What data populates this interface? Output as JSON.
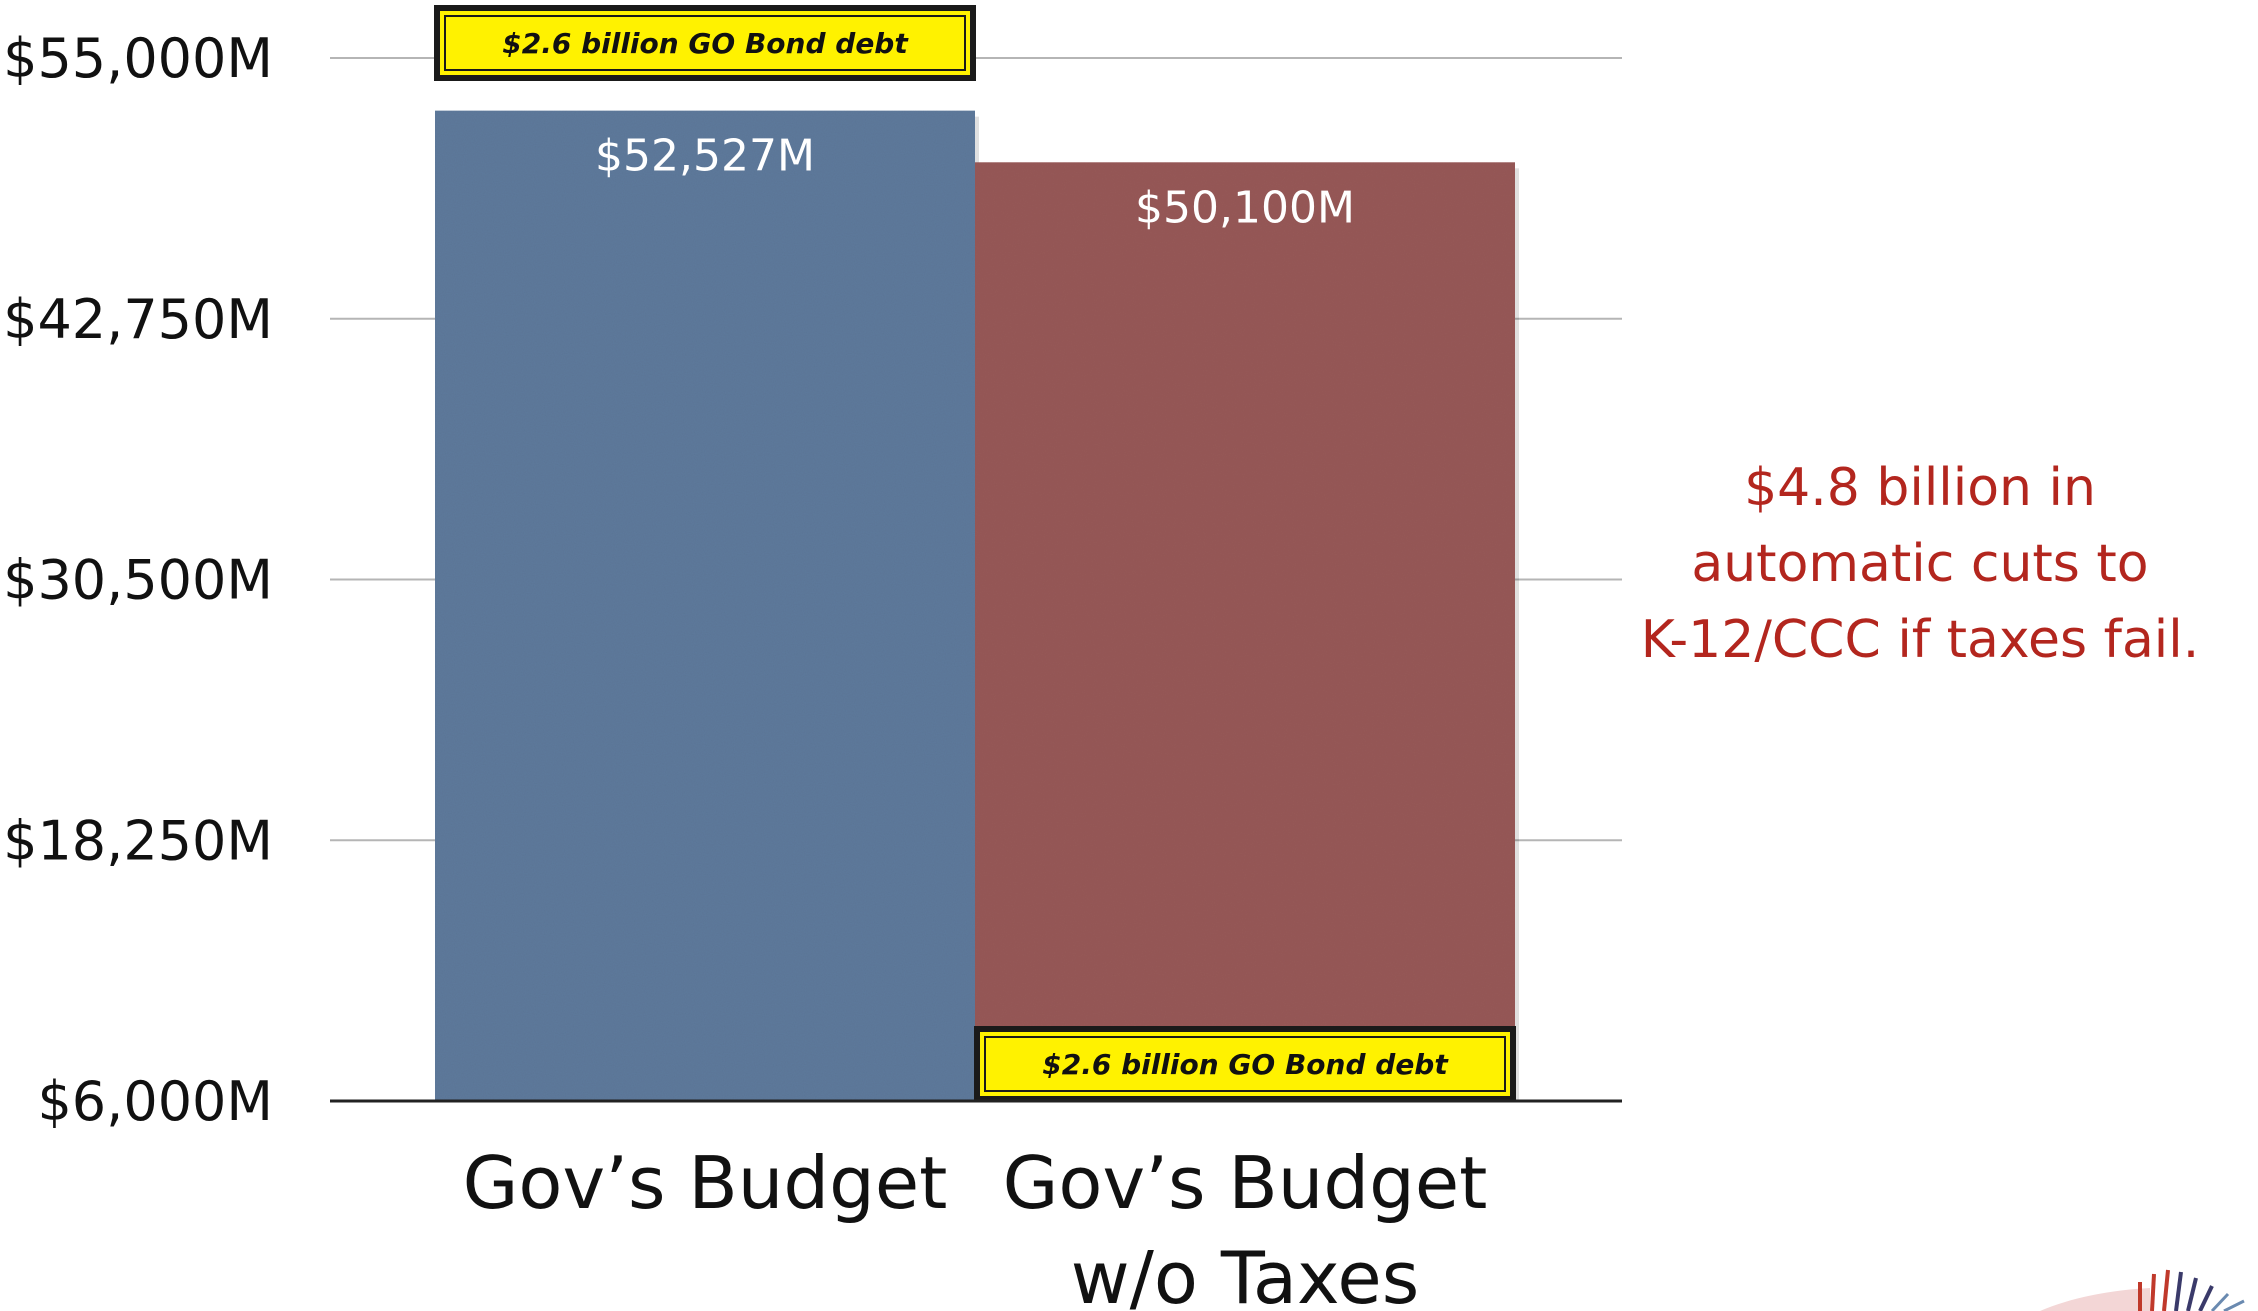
{
  "chart_data": {
    "type": "bar",
    "categories": [
      "Gov’s Budget",
      "Gov’s Budget\nw/o Taxes"
    ],
    "values": [
      52527,
      50100
    ],
    "value_labels": [
      "$52,527M",
      "$50,100M"
    ],
    "colors": [
      "#5e7a9c",
      "#985a58"
    ],
    "ylim": [
      6000,
      55000
    ],
    "yticks": [
      6000,
      18250,
      30500,
      42750,
      55000
    ],
    "ytick_labels": [
      "$6,000M",
      "$18,250M",
      "$30,500M",
      "$42,750M",
      "$55,000M"
    ],
    "grid": true,
    "annotations": [
      {
        "text": "$2.6 billion GO Bond debt",
        "bar": 0,
        "placement": "above-bar",
        "color": "#fff200"
      },
      {
        "text": "$2.6 billion GO Bond debt",
        "bar": 1,
        "placement": "bar-base",
        "color": "#fff200"
      }
    ]
  },
  "side_note": {
    "lines": [
      "$4.8 billion in",
      "automatic cuts to",
      "K-12/CCC if taxes fail."
    ],
    "color": "#b3261e"
  }
}
